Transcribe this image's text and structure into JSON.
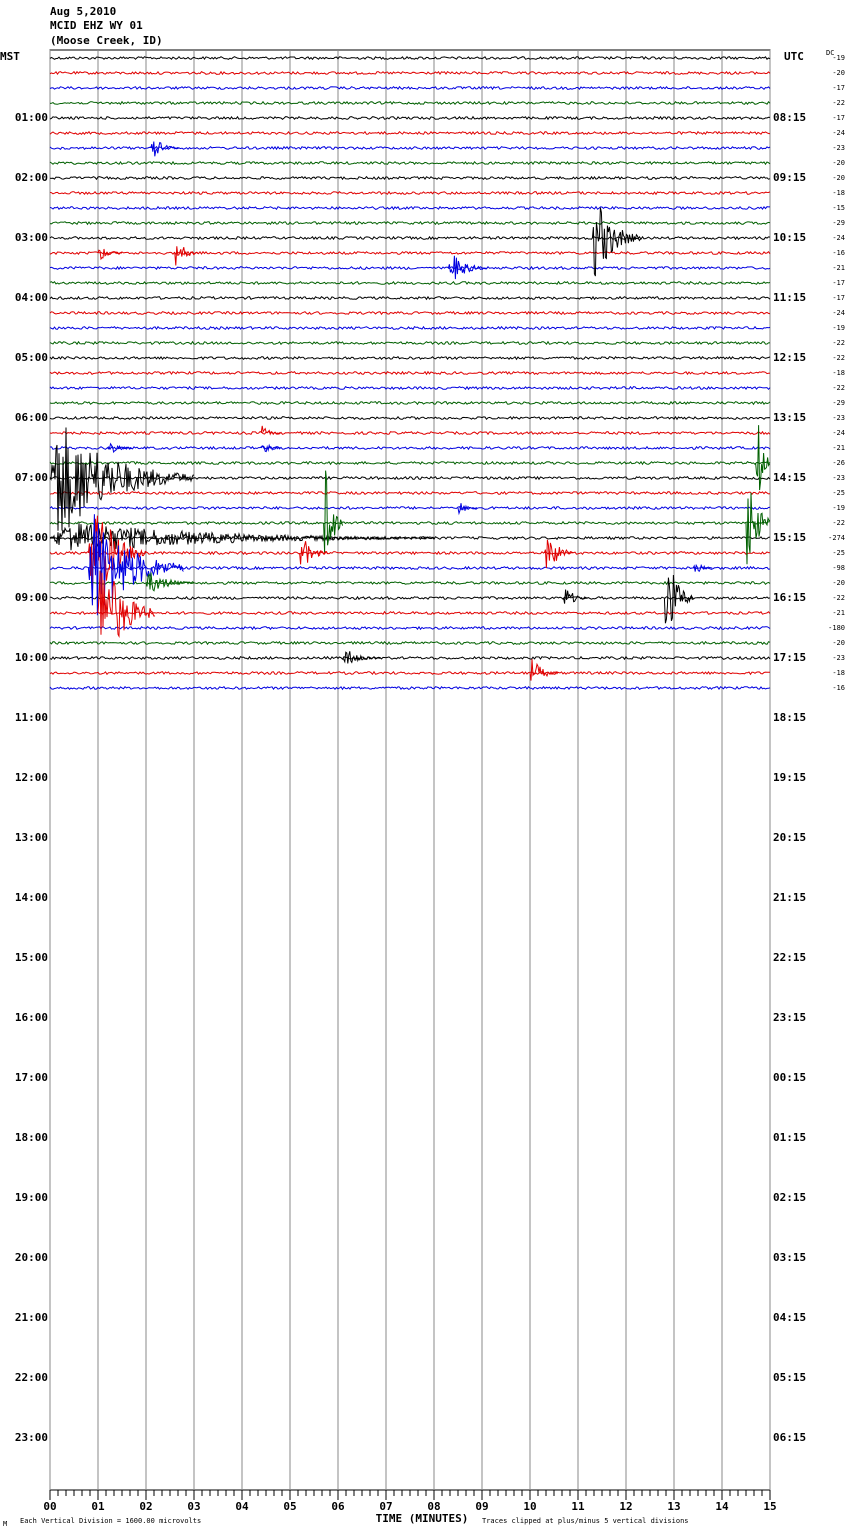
{
  "header": {
    "date": "Aug 5,2010",
    "station": "MCID EHZ WY 01",
    "location": "(Moose Creek, ID)"
  },
  "chart_data": {
    "type": "helicorder",
    "left_label": "MST",
    "right_label": "UTC",
    "dc_label": "DC",
    "xlabel": "TIME (MINUTES)",
    "footer_mark": "M",
    "footer_left": "Each Vertical Division = 1600.00 microvolts",
    "footer_right": "Traces clipped at plus/minus 5 vertical divisions",
    "xlim": [
      0,
      15
    ],
    "xticks": [
      {
        "value": 0,
        "label": "00"
      },
      {
        "value": 1,
        "label": "01"
      },
      {
        "value": 2,
        "label": "02"
      },
      {
        "value": 3,
        "label": "03"
      },
      {
        "value": 4,
        "label": "04"
      },
      {
        "value": 5,
        "label": "05"
      },
      {
        "value": 6,
        "label": "06"
      },
      {
        "value": 7,
        "label": "07"
      },
      {
        "value": 8,
        "label": "08"
      },
      {
        "value": 9,
        "label": "09"
      },
      {
        "value": 10,
        "label": "10"
      },
      {
        "value": 11,
        "label": "11"
      },
      {
        "value": 12,
        "label": "12"
      },
      {
        "value": 13,
        "label": "13"
      },
      {
        "value": 14,
        "label": "14"
      },
      {
        "value": 15,
        "label": "15"
      }
    ],
    "ylim": [
      0,
      24
    ],
    "yticks": [
      {
        "value": 1,
        "label": "01:00"
      },
      {
        "value": 2,
        "label": "02:00"
      },
      {
        "value": 3,
        "label": "03:00"
      },
      {
        "value": 4,
        "label": "04:00"
      },
      {
        "value": 5,
        "label": "05:00"
      },
      {
        "value": 6,
        "label": "06:00"
      },
      {
        "value": 7,
        "label": "07:00"
      },
      {
        "value": 8,
        "label": "08:00"
      },
      {
        "value": 9,
        "label": "09:00"
      },
      {
        "value": 10,
        "label": "10:00"
      },
      {
        "value": 11,
        "label": "11:00"
      },
      {
        "value": 12,
        "label": "12:00"
      },
      {
        "value": 13,
        "label": "13:00"
      },
      {
        "value": 14,
        "label": "14:00"
      },
      {
        "value": 15,
        "label": "15:00"
      },
      {
        "value": 16,
        "label": "16:00"
      },
      {
        "value": 17,
        "label": "17:00"
      },
      {
        "value": 18,
        "label": "18:00"
      },
      {
        "value": 19,
        "label": "19:00"
      },
      {
        "value": 20,
        "label": "20:00"
      },
      {
        "value": 21,
        "label": "21:00"
      },
      {
        "value": 22,
        "label": "22:00"
      },
      {
        "value": 23,
        "label": "23:00"
      }
    ],
    "y2ticks": [
      {
        "value": 1,
        "label": "08:15"
      },
      {
        "value": 2,
        "label": "09:15"
      },
      {
        "value": 3,
        "label": "10:15"
      },
      {
        "value": 4,
        "label": "11:15"
      },
      {
        "value": 5,
        "label": "12:15"
      },
      {
        "value": 6,
        "label": "13:15"
      },
      {
        "value": 7,
        "label": "14:15"
      },
      {
        "value": 8,
        "label": "15:15"
      },
      {
        "value": 9,
        "label": "16:15"
      },
      {
        "value": 10,
        "label": "17:15"
      },
      {
        "value": 11,
        "label": "18:15"
      },
      {
        "value": 12,
        "label": "19:15"
      },
      {
        "value": 13,
        "label": "20:15"
      },
      {
        "value": 14,
        "label": "21:15"
      },
      {
        "value": 15,
        "label": "22:15"
      },
      {
        "value": 16,
        "label": "23:15"
      },
      {
        "value": 17,
        "label": "00:15"
      },
      {
        "value": 18,
        "label": "01:15"
      },
      {
        "value": 19,
        "label": "02:15"
      },
      {
        "value": 20,
        "label": "03:15"
      },
      {
        "value": 21,
        "label": "04:15"
      },
      {
        "value": 22,
        "label": "05:15"
      },
      {
        "value": 23,
        "label": "06:15"
      }
    ],
    "colors": [
      "#000000",
      "#e00000",
      "#0000e0",
      "#006000"
    ],
    "dc_offsets": [
      -19,
      -20,
      -17,
      -22,
      -17,
      -24,
      -23,
      -20,
      -20,
      -18,
      -15,
      -29,
      -24,
      -16,
      -21,
      -17,
      -17,
      -24,
      -19,
      -22,
      -22,
      -18,
      -22,
      -29,
      -23,
      -24,
      -21,
      -26,
      -23,
      -25,
      -19,
      -22,
      -274,
      -25,
      -98,
      -20,
      -22,
      -21,
      -180,
      -20,
      -23,
      -18,
      -16
    ],
    "events": [
      {
        "trace": 6,
        "minute": 2.1,
        "amplitude": 1,
        "duration": 0.6
      },
      {
        "trace": 13,
        "minute": 1.0,
        "amplitude": 0.7,
        "duration": 0.5
      },
      {
        "trace": 13,
        "minute": 2.6,
        "amplitude": 1.2,
        "duration": 0.5
      },
      {
        "trace": 12,
        "minute": 11.3,
        "amplitude": 3.5,
        "duration": 1
      },
      {
        "trace": 14,
        "minute": 8.3,
        "amplitude": 1.3,
        "duration": 0.8
      },
      {
        "trace": 26,
        "minute": 1.2,
        "amplitude": 0.6,
        "duration": 0.5
      },
      {
        "trace": 25,
        "minute": 4.4,
        "amplitude": 0.6,
        "duration": 0.4
      },
      {
        "trace": 26,
        "minute": 4.4,
        "amplitude": 0.8,
        "duration": 0.4
      },
      {
        "trace": 28,
        "minute": 0,
        "amplitude": 5,
        "duration": 3
      },
      {
        "trace": 32,
        "minute": 0,
        "amplitude": 1.3,
        "duration": 8
      },
      {
        "trace": 33,
        "minute": 0.8,
        "amplitude": 5,
        "duration": 1.2
      },
      {
        "trace": 34,
        "minute": 0.8,
        "amplitude": 5,
        "duration": 2
      },
      {
        "trace": 35,
        "minute": 2,
        "amplitude": 1,
        "duration": 1
      },
      {
        "trace": 37,
        "minute": 1,
        "amplitude": 5,
        "duration": 1.2
      },
      {
        "trace": 27,
        "minute": 14.7,
        "amplitude": 5,
        "duration": 0.3
      },
      {
        "trace": 31,
        "minute": 14.5,
        "amplitude": 5,
        "duration": 0.5
      },
      {
        "trace": 31,
        "minute": 5.7,
        "amplitude": 5,
        "duration": 0.4
      },
      {
        "trace": 33,
        "minute": 5.2,
        "amplitude": 1.5,
        "duration": 0.6
      },
      {
        "trace": 33,
        "minute": 10.3,
        "amplitude": 2,
        "duration": 0.6
      },
      {
        "trace": 36,
        "minute": 10.7,
        "amplitude": 1,
        "duration": 0.5
      },
      {
        "trace": 36,
        "minute": 12.8,
        "amplitude": 4,
        "duration": 0.6
      },
      {
        "trace": 40,
        "minute": 6.1,
        "amplitude": 0.8,
        "duration": 0.8
      },
      {
        "trace": 41,
        "minute": 10,
        "amplitude": 1.2,
        "duration": 0.6
      },
      {
        "trace": 30,
        "minute": 8.5,
        "amplitude": 0.6,
        "duration": 0.4
      },
      {
        "trace": 34,
        "minute": 13.4,
        "amplitude": 0.7,
        "duration": 0.4
      }
    ]
  }
}
